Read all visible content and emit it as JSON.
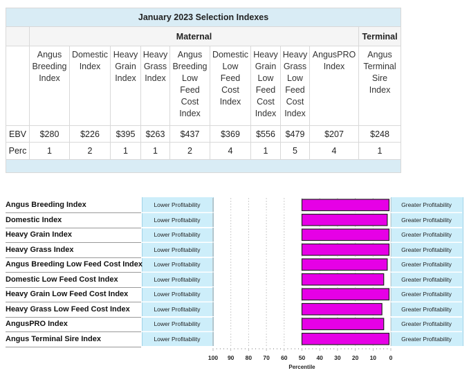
{
  "table": {
    "title": "January 2023 Selection Indexes",
    "group_maternal": "Maternal",
    "group_terminal": "Terminal",
    "headers": [
      [
        "Angus",
        "Breeding",
        "Index"
      ],
      [
        "Domestic",
        "Index"
      ],
      [
        "Heavy",
        "Grain",
        "Index"
      ],
      [
        "Heavy",
        "Grass",
        "Index"
      ],
      [
        "Angus",
        "Breeding",
        "Low",
        "Feed",
        "Cost",
        "Index"
      ],
      [
        "Domestic",
        "Low",
        "Feed",
        "Cost",
        "Index"
      ],
      [
        "Heavy",
        "Grain",
        "Low",
        "Feed",
        "Cost",
        "Index"
      ],
      [
        "Heavy",
        "Grass",
        "Low",
        "Feed",
        "Cost",
        "Index"
      ],
      [
        "AngusPRO",
        "Index"
      ],
      [
        "Angus",
        "Terminal",
        "Sire",
        "Index"
      ]
    ],
    "ebv_label": "EBV",
    "perc_label": "Perc",
    "ebv": [
      "$280",
      "$226",
      "$395",
      "$263",
      "$437",
      "$369",
      "$556",
      "$479",
      "$207",
      "$248"
    ],
    "perc": [
      "1",
      "2",
      "1",
      "1",
      "2",
      "4",
      "1",
      "5",
      "4",
      "1"
    ]
  },
  "chart_data": {
    "type": "bar",
    "orientation": "horizontal",
    "categories": [
      "Angus Breeding Index",
      "Domestic Index",
      "Heavy Grain Index",
      "Heavy Grass Index",
      "Angus Breeding Low Feed Cost Index",
      "Domestic Low Feed Cost Index",
      "Heavy Grain Low Feed Cost Index",
      "Heavy Grass Low Feed Cost Index",
      "AngusPRO Index",
      "Angus Terminal Sire Index"
    ],
    "values": [
      1,
      2,
      1,
      1,
      2,
      4,
      1,
      5,
      4,
      1
    ],
    "bar_base": 50,
    "xlim": [
      100,
      0
    ],
    "xticks": [
      "100",
      "90",
      "80",
      "70",
      "60",
      "50",
      "40",
      "30",
      "20",
      "10",
      "0"
    ],
    "xlabel": "Percentile",
    "lower_label": "Lower Profitability",
    "greater_label": "Greater Profitability",
    "bar_color": "#e600e6",
    "band_color": "#cdeefa",
    "grid": true
  }
}
